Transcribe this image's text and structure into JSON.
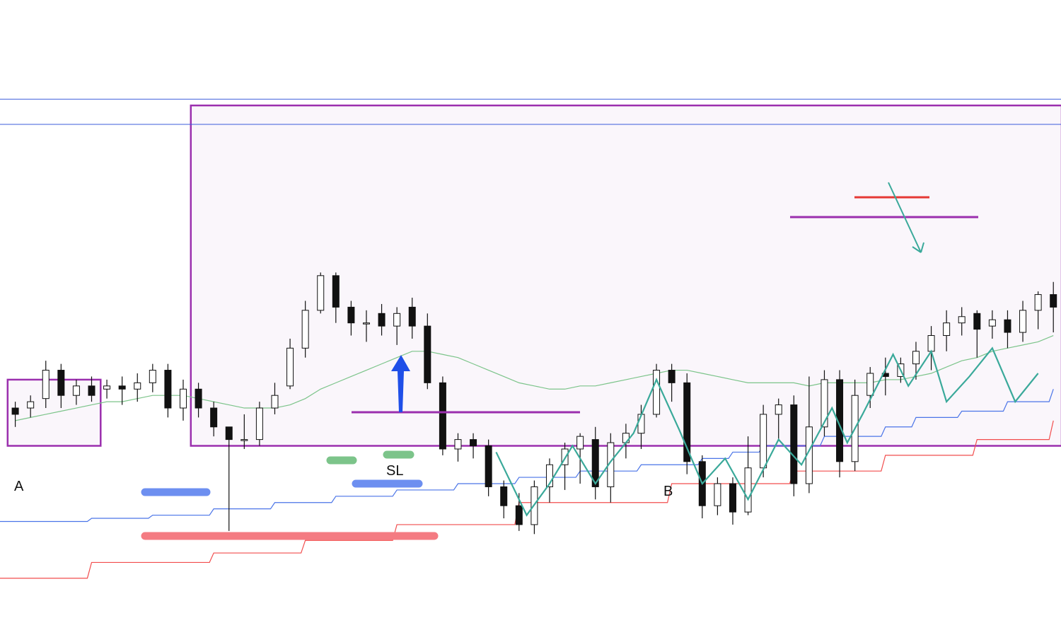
{
  "chart_data": {
    "type": "candlestick",
    "title": "",
    "xlabel": "",
    "ylabel": "",
    "grid": false,
    "legend": "none",
    "annotations": {
      "box_a_label": "A",
      "box_b_label": "B",
      "stop_loss_label": "SL"
    },
    "candles": [
      [
        1,
        614,
        612,
        608,
        616
      ],
      [
        2,
        614,
        616,
        611,
        618
      ],
      [
        3,
        617,
        626,
        614,
        629
      ],
      [
        4,
        626,
        618,
        614,
        628
      ],
      [
        5,
        618,
        621,
        615,
        623
      ],
      [
        6,
        621,
        618,
        616,
        624
      ],
      [
        7,
        620,
        621,
        617,
        623
      ],
      [
        8,
        621,
        620,
        615,
        624
      ],
      [
        9,
        620,
        622,
        616,
        625
      ],
      [
        10,
        622,
        626,
        619,
        628
      ],
      [
        11,
        626,
        614,
        611,
        628
      ],
      [
        12,
        614,
        620,
        610,
        623
      ],
      [
        13,
        620,
        614,
        611,
        622
      ],
      [
        14,
        614,
        608,
        605,
        616
      ],
      [
        15,
        608,
        604,
        575,
        608
      ],
      [
        16,
        604,
        604,
        601,
        612
      ],
      [
        17,
        604,
        614,
        602,
        616
      ],
      [
        18,
        614,
        618,
        612,
        622
      ],
      [
        19,
        621,
        633,
        620,
        636
      ],
      [
        20,
        633,
        645,
        630,
        648
      ],
      [
        21,
        645,
        656,
        644,
        657
      ],
      [
        22,
        656,
        646,
        641,
        657
      ],
      [
        23,
        646,
        641,
        637,
        648
      ],
      [
        24,
        641,
        641,
        635,
        645
      ],
      [
        25,
        644,
        640,
        637,
        647
      ],
      [
        26,
        640,
        644,
        634,
        646
      ],
      [
        27,
        646,
        640,
        636,
        649
      ],
      [
        28,
        640,
        622,
        620,
        644
      ],
      [
        29,
        622,
        601,
        599,
        624
      ],
      [
        30,
        601,
        604,
        597,
        606
      ],
      [
        31,
        604,
        602,
        598,
        606
      ],
      [
        32,
        602,
        589,
        586,
        604
      ],
      [
        33,
        589,
        583,
        579,
        591
      ],
      [
        34,
        583,
        577,
        575,
        587
      ],
      [
        35,
        577,
        589,
        574,
        591
      ],
      [
        36,
        589,
        596,
        584,
        598
      ],
      [
        37,
        596,
        601,
        588,
        603
      ],
      [
        38,
        601,
        605,
        590,
        606
      ],
      [
        39,
        604,
        589,
        585,
        608
      ],
      [
        40,
        589,
        603,
        584,
        606
      ],
      [
        41,
        603,
        606,
        598,
        609
      ],
      [
        42,
        606,
        612,
        601,
        615
      ],
      [
        43,
        612,
        626,
        611,
        628
      ],
      [
        44,
        626,
        622,
        616,
        628
      ],
      [
        45,
        622,
        597,
        593,
        625
      ],
      [
        46,
        597,
        583,
        579,
        599
      ],
      [
        47,
        583,
        590,
        580,
        592
      ],
      [
        48,
        590,
        581,
        577,
        592
      ],
      [
        49,
        581,
        595,
        580,
        605
      ],
      [
        50,
        595,
        612,
        592,
        615
      ],
      [
        51,
        612,
        615,
        604,
        617
      ],
      [
        52,
        615,
        590,
        586,
        618
      ],
      [
        53,
        590,
        608,
        587,
        624
      ],
      [
        54,
        608,
        623,
        605,
        626
      ],
      [
        55,
        623,
        597,
        592,
        626
      ],
      [
        56,
        597,
        618,
        594,
        623
      ],
      [
        57,
        618,
        625,
        614,
        627
      ],
      [
        58,
        625,
        624,
        618,
        630
      ],
      [
        59,
        624,
        628,
        622,
        630
      ],
      [
        60,
        628,
        632,
        623,
        635
      ],
      [
        61,
        632,
        637,
        626,
        640
      ],
      [
        62,
        637,
        641,
        632,
        645
      ],
      [
        63,
        641,
        643,
        637,
        646
      ],
      [
        64,
        644,
        639,
        630,
        645
      ],
      [
        65,
        640,
        642,
        636,
        645
      ],
      [
        66,
        642,
        638,
        633,
        645
      ],
      [
        67,
        638,
        645,
        635,
        648
      ],
      [
        68,
        645,
        650,
        639,
        651
      ],
      [
        69,
        650,
        646,
        638,
        654
      ]
    ],
    "moving_average": [
      [
        1,
        610
      ],
      [
        2,
        611
      ],
      [
        3,
        612
      ],
      [
        4,
        613
      ],
      [
        5,
        614
      ],
      [
        6,
        615
      ],
      [
        7,
        616
      ],
      [
        8,
        616
      ],
      [
        9,
        617
      ],
      [
        10,
        618
      ],
      [
        11,
        618
      ],
      [
        12,
        618
      ],
      [
        13,
        617
      ],
      [
        14,
        616
      ],
      [
        15,
        615
      ],
      [
        16,
        614
      ],
      [
        17,
        614
      ],
      [
        18,
        614
      ],
      [
        19,
        615
      ],
      [
        20,
        617
      ],
      [
        21,
        620
      ],
      [
        22,
        622
      ],
      [
        23,
        624
      ],
      [
        24,
        626
      ],
      [
        25,
        628
      ],
      [
        26,
        630
      ],
      [
        27,
        632
      ],
      [
        28,
        632
      ],
      [
        29,
        631
      ],
      [
        30,
        630
      ],
      [
        31,
        628
      ],
      [
        32,
        626
      ],
      [
        33,
        624
      ],
      [
        34,
        622
      ],
      [
        35,
        621
      ],
      [
        36,
        620
      ],
      [
        37,
        620
      ],
      [
        38,
        621
      ],
      [
        39,
        621
      ],
      [
        40,
        622
      ],
      [
        41,
        623
      ],
      [
        42,
        624
      ],
      [
        43,
        625
      ],
      [
        44,
        626
      ],
      [
        45,
        626
      ],
      [
        46,
        625
      ],
      [
        47,
        624
      ],
      [
        48,
        623
      ],
      [
        49,
        622
      ],
      [
        50,
        622
      ],
      [
        51,
        622
      ],
      [
        52,
        622
      ],
      [
        53,
        621
      ],
      [
        54,
        622
      ],
      [
        55,
        622
      ],
      [
        56,
        622
      ],
      [
        57,
        622
      ],
      [
        58,
        623
      ],
      [
        59,
        623
      ],
      [
        60,
        624
      ],
      [
        61,
        625
      ],
      [
        62,
        627
      ],
      [
        63,
        629
      ],
      [
        64,
        630
      ],
      [
        65,
        632
      ],
      [
        66,
        633
      ],
      [
        67,
        634
      ],
      [
        68,
        635
      ],
      [
        69,
        637
      ]
    ],
    "base_line": [
      [
        0,
        578
      ],
      [
        6,
        579
      ],
      [
        10,
        580
      ],
      [
        14,
        582
      ],
      [
        18,
        584
      ],
      [
        22,
        586
      ],
      [
        26,
        588
      ],
      [
        30,
        590
      ],
      [
        34,
        592
      ],
      [
        38,
        594
      ],
      [
        42,
        596
      ],
      [
        46,
        598
      ],
      [
        48,
        600
      ],
      [
        50,
        602
      ],
      [
        54,
        605
      ],
      [
        58,
        608
      ],
      [
        60,
        611
      ],
      [
        63,
        613
      ],
      [
        66,
        616
      ],
      [
        69,
        620
      ]
    ],
    "span_line": [
      [
        0,
        560
      ],
      [
        6,
        565
      ],
      [
        14,
        568
      ],
      [
        20,
        572
      ],
      [
        26,
        577
      ],
      [
        34,
        584
      ],
      [
        44,
        590
      ],
      [
        52,
        594
      ],
      [
        58,
        599
      ],
      [
        64,
        604
      ],
      [
        69,
        610
      ]
    ],
    "zones": [
      {
        "name": "A",
        "x": [
          0.5,
          6.5
        ],
        "y": [
          602,
          623
        ]
      },
      {
        "name": "B",
        "x": [
          12.5,
          70
        ],
        "y": [
          602,
          710
        ]
      }
    ],
    "resistance_lines": [
      712,
      704
    ],
    "breakout_level": 615,
    "ylim": [
      555,
      730
    ],
    "xlim": [
      0,
      69.5
    ]
  }
}
